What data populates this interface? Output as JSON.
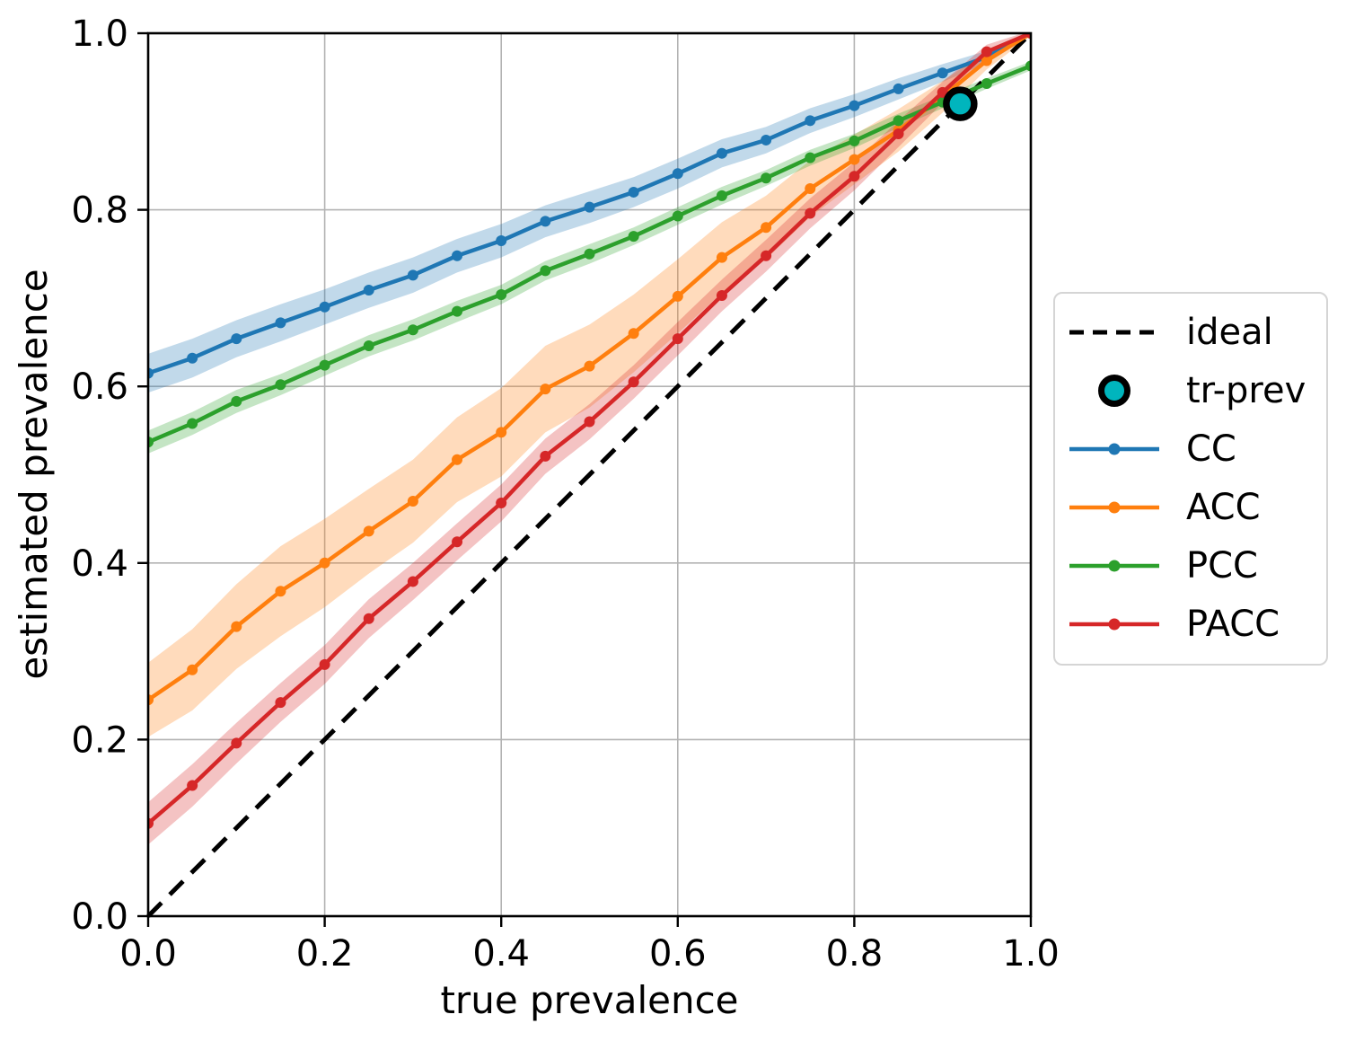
{
  "chart_data": {
    "type": "line",
    "title": "",
    "xlabel": "true prevalence",
    "ylabel": "estimated prevalence",
    "xlim": [
      0.0,
      1.0
    ],
    "ylim": [
      0.0,
      1.0
    ],
    "xticks": [
      "0.0",
      "0.2",
      "0.4",
      "0.6",
      "0.8",
      "1.0"
    ],
    "yticks": [
      "0.0",
      "0.2",
      "0.4",
      "0.6",
      "0.8",
      "1.0"
    ],
    "grid": true,
    "grid_color": "#b3b3b3",
    "legend_position": "center right",
    "x": [
      0.0,
      0.05,
      0.1,
      0.15,
      0.2,
      0.25,
      0.3,
      0.35,
      0.4,
      0.45,
      0.5,
      0.55,
      0.6,
      0.65,
      0.7,
      0.75,
      0.8,
      0.85,
      0.9,
      0.95,
      1.0
    ],
    "series": [
      {
        "name": "CC",
        "color": "#1f77b4",
        "values": [
          0.615,
          0.632,
          0.654,
          0.672,
          0.69,
          0.709,
          0.726,
          0.748,
          0.765,
          0.787,
          0.803,
          0.82,
          0.841,
          0.864,
          0.879,
          0.901,
          0.918,
          0.937,
          0.955,
          0.973,
          1.0
        ],
        "band_halfwidth": [
          0.022,
          0.022,
          0.021,
          0.021,
          0.02,
          0.02,
          0.02,
          0.019,
          0.019,
          0.018,
          0.018,
          0.017,
          0.017,
          0.016,
          0.015,
          0.014,
          0.013,
          0.012,
          0.01,
          0.007,
          0.003
        ]
      },
      {
        "name": "ACC",
        "color": "#ff7f0e",
        "values": [
          0.245,
          0.279,
          0.328,
          0.368,
          0.4,
          0.436,
          0.47,
          0.517,
          0.548,
          0.597,
          0.623,
          0.66,
          0.702,
          0.746,
          0.78,
          0.824,
          0.857,
          0.89,
          0.928,
          0.969,
          1.0
        ],
        "band_halfwidth": [
          0.042,
          0.046,
          0.048,
          0.051,
          0.05,
          0.048,
          0.047,
          0.048,
          0.05,
          0.049,
          0.047,
          0.044,
          0.042,
          0.04,
          0.036,
          0.032,
          0.028,
          0.024,
          0.018,
          0.01,
          0.003
        ]
      },
      {
        "name": "PCC",
        "color": "#2ca02c",
        "values": [
          0.537,
          0.558,
          0.583,
          0.602,
          0.624,
          0.646,
          0.664,
          0.685,
          0.704,
          0.731,
          0.75,
          0.77,
          0.793,
          0.816,
          0.836,
          0.859,
          0.878,
          0.901,
          0.922,
          0.943,
          0.963
        ],
        "band_halfwidth": [
          0.013,
          0.013,
          0.013,
          0.012,
          0.012,
          0.012,
          0.012,
          0.012,
          0.011,
          0.011,
          0.011,
          0.01,
          0.01,
          0.01,
          0.009,
          0.009,
          0.008,
          0.008,
          0.007,
          0.006,
          0.005
        ]
      },
      {
        "name": "PACC",
        "color": "#d62728",
        "values": [
          0.105,
          0.148,
          0.196,
          0.242,
          0.285,
          0.337,
          0.379,
          0.424,
          0.468,
          0.521,
          0.56,
          0.605,
          0.654,
          0.703,
          0.748,
          0.796,
          0.838,
          0.886,
          0.933,
          0.979,
          1.0
        ],
        "band_halfwidth": [
          0.024,
          0.024,
          0.023,
          0.022,
          0.022,
          0.022,
          0.021,
          0.021,
          0.021,
          0.02,
          0.02,
          0.019,
          0.019,
          0.018,
          0.018,
          0.017,
          0.016,
          0.015,
          0.012,
          0.008,
          0.003
        ]
      }
    ],
    "ideal_line": {
      "label": "ideal",
      "style": "dashed",
      "color": "#000000",
      "from": [
        0.0,
        0.0
      ],
      "to": [
        1.0,
        1.0
      ]
    },
    "tr_prev": {
      "label": "tr-prev",
      "x": 0.92,
      "y": 0.92,
      "fill": "#00b5bd",
      "edge": "#000000"
    },
    "legend_entries": [
      "ideal",
      "tr-prev",
      "CC",
      "ACC",
      "PCC",
      "PACC"
    ]
  },
  "labels": {
    "xlabel": "true prevalence",
    "ylabel": "estimated prevalence"
  }
}
